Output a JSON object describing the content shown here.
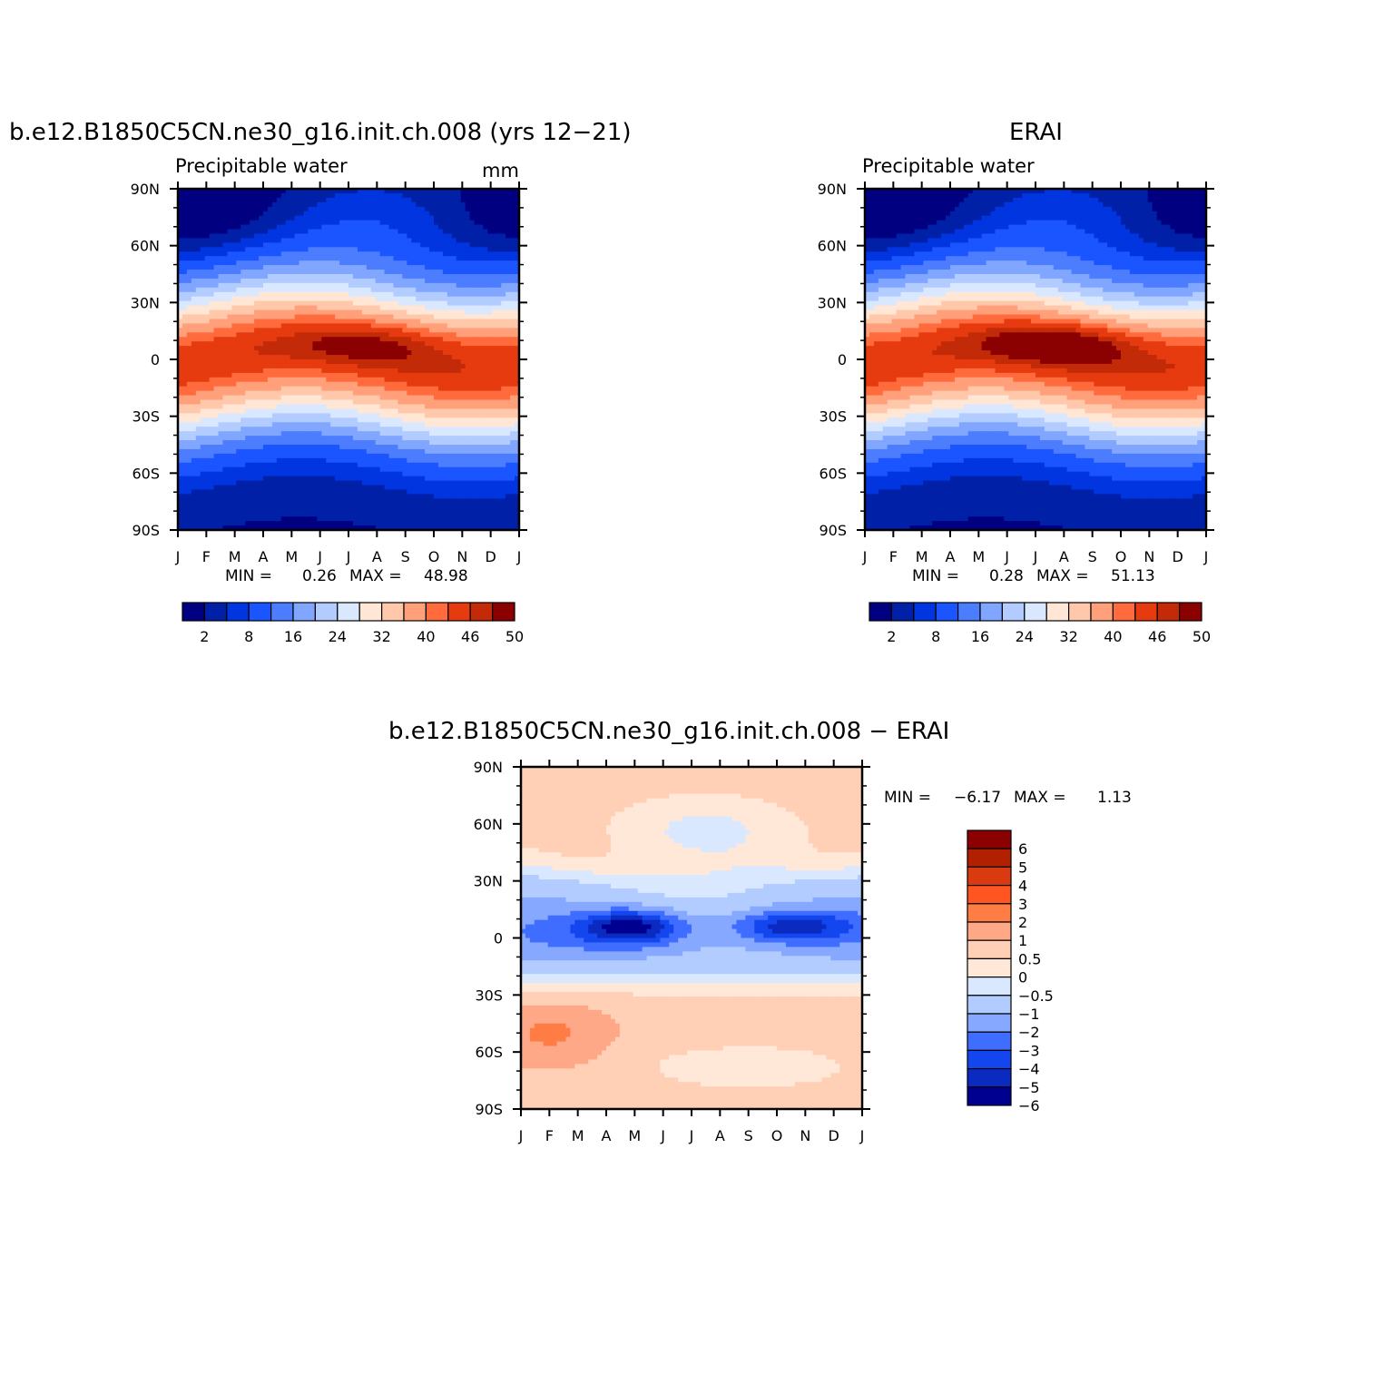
{
  "figure": {
    "top_left_title": "b.e12.B1850C5CN.ne30_g16.init.ch.008 (yrs 12-21)",
    "top_right_title": "ERAI",
    "bottom_title": "b.e12.B1850C5CN.ne30_g16.init.ch.008 - ERAI"
  },
  "chart_data": [
    {
      "type": "heatmap",
      "subtitle": "Precipitable water",
      "units": "mm",
      "x_tick_labels": [
        "J",
        "F",
        "M",
        "A",
        "M",
        "J",
        "J",
        "A",
        "S",
        "O",
        "N",
        "D",
        "J"
      ],
      "y_tick_labels": [
        "90N",
        "60N",
        "30N",
        "0",
        "30S",
        "60S",
        "90S"
      ],
      "ylim": [
        -90,
        90
      ],
      "stats": {
        "min_label": "MIN =",
        "min": "0.26",
        "max_label": "MAX =",
        "max": "48.98"
      },
      "colorbar": {
        "orientation": "horizontal",
        "labels": [
          "2",
          "8",
          "16",
          "24",
          "32",
          "40",
          "46",
          "50"
        ],
        "colors": [
          "#000080",
          "#0020a8",
          "#0035e0",
          "#1a55ff",
          "#4d7dff",
          "#80a6ff",
          "#b3ccff",
          "#d9e8ff",
          "#ffe6d5",
          "#ffc8aa",
          "#ffa07a",
          "#ff6b3d",
          "#e63a0f",
          "#c22a08",
          "#8b0000"
        ]
      },
      "itcz_peak_month": 7.2,
      "itcz_peak_lat": 10
    },
    {
      "type": "heatmap",
      "subtitle": "Precipitable water",
      "x_tick_labels": [
        "J",
        "F",
        "M",
        "A",
        "M",
        "J",
        "J",
        "A",
        "S",
        "O",
        "N",
        "D",
        "J"
      ],
      "y_tick_labels": [
        "90N",
        "60N",
        "30N",
        "0",
        "30S",
        "60S",
        "90S"
      ],
      "ylim": [
        -90,
        90
      ],
      "stats": {
        "min_label": "MIN =",
        "min": "0.28",
        "max_label": "MAX =",
        "max": "51.13"
      },
      "colorbar": {
        "orientation": "horizontal",
        "labels": [
          "2",
          "8",
          "16",
          "24",
          "32",
          "40",
          "46",
          "50"
        ],
        "colors": [
          "#000080",
          "#0020a8",
          "#0035e0",
          "#1a55ff",
          "#4d7dff",
          "#80a6ff",
          "#b3ccff",
          "#d9e8ff",
          "#ffe6d5",
          "#ffc8aa",
          "#ffa07a",
          "#ff6b3d",
          "#e63a0f",
          "#c22a08",
          "#8b0000"
        ]
      },
      "itcz_peak_month": 7.2,
      "itcz_peak_lat": 10
    },
    {
      "type": "heatmap",
      "x_tick_labels": [
        "J",
        "F",
        "M",
        "A",
        "M",
        "J",
        "J",
        "A",
        "S",
        "O",
        "N",
        "D",
        "J"
      ],
      "y_tick_labels": [
        "90N",
        "60N",
        "30N",
        "0",
        "30S",
        "60S",
        "90S"
      ],
      "ylim": [
        -90,
        90
      ],
      "stats": {
        "min_label": "MIN =",
        "min": "-6.17",
        "max_label": "MAX =",
        "max": "1.13"
      },
      "colorbar": {
        "orientation": "vertical",
        "labels": [
          "6",
          "5",
          "4",
          "3",
          "2",
          "1",
          "0.5",
          "0",
          "-0.5",
          "-1",
          "-2",
          "-3",
          "-4",
          "-5",
          "-6"
        ],
        "colors": [
          "#8b0000",
          "#b22000",
          "#d93a10",
          "#ff5520",
          "#ff7d45",
          "#ffa888",
          "#ffd0b5",
          "#ffe8d8",
          "#d9e8ff",
          "#b3ccff",
          "#86a8ff",
          "#3f6dff",
          "#1446f0",
          "#0a2ac0",
          "#000090"
        ]
      }
    }
  ]
}
